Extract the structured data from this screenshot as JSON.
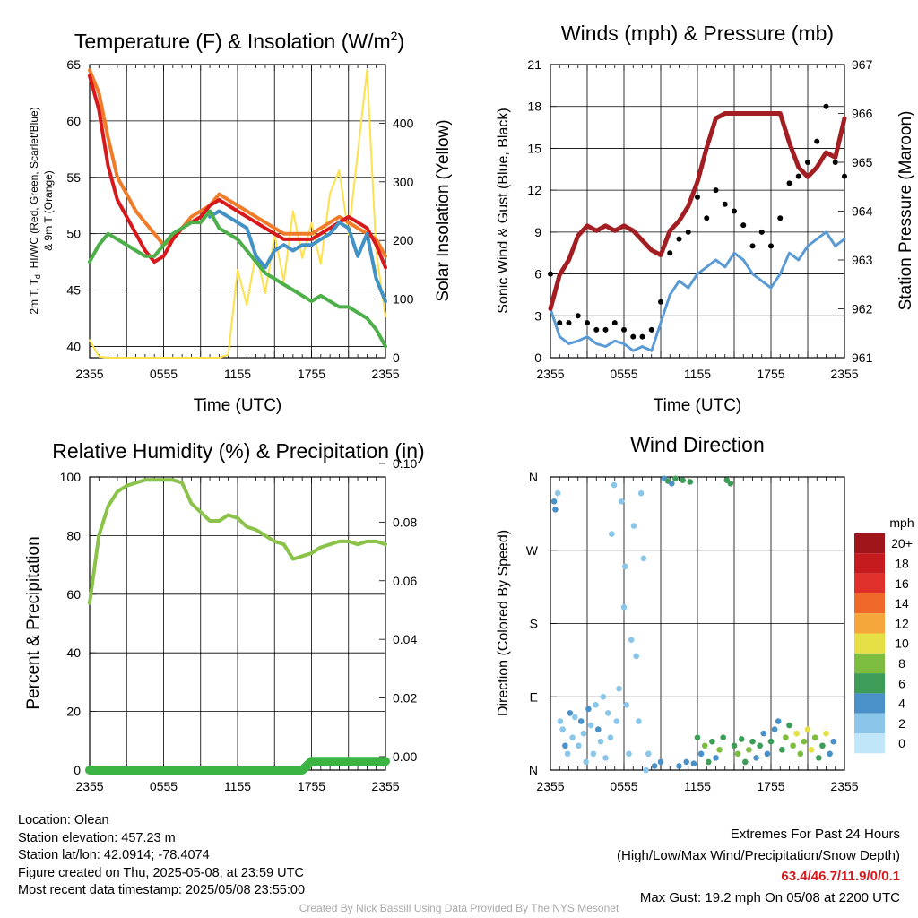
{
  "chart_data": [
    {
      "id": "temp",
      "type": "line",
      "title": "Temperature (F) & Insolation (W/m",
      "title_sup": "2",
      "title_end": ")",
      "xlabel": "Time (UTC)",
      "ylabel_left": "2m T, T",
      "ylabel_left_sub": "d",
      "ylabel_left_rest": ", HI/WC (Red, Green, Scarlet/Blue)",
      "ylabel_left_line2": "& 9m T (Orange)",
      "ylabel_right": "Solar Insolation (Yellow)",
      "x_ticks": [
        "2355",
        "0555",
        "1155",
        "1755",
        "2355"
      ],
      "ylim": [
        39,
        65
      ],
      "y_ticks": [
        40,
        45,
        50,
        55,
        60,
        65
      ],
      "y2lim": [
        0,
        500
      ],
      "y2_ticks": [
        0,
        100,
        200,
        300,
        400
      ],
      "grid": true,
      "series": [
        {
          "color": "#f07b29",
          "values": [
            64.5,
            62.5,
            58.5,
            55.0,
            53.5,
            52.0,
            51.0,
            50.0,
            49.0,
            49.5,
            50.5,
            51.5,
            52.0,
            52.5,
            53.5,
            53.0,
            52.5,
            52.0,
            51.5,
            51.0,
            50.5,
            50.0,
            50.0,
            50.0,
            50.0,
            50.5,
            51.0,
            51.5,
            51.0,
            50.5,
            50.0,
            49.5,
            48.0
          ]
        },
        {
          "color": "#d7191c",
          "values": [
            64.0,
            61.0,
            56.0,
            53.0,
            51.5,
            50.0,
            48.5,
            47.5,
            48.0,
            49.5,
            50.5,
            51.0,
            51.5,
            52.5,
            53.0,
            52.5,
            52.0,
            51.5,
            51.0,
            50.5,
            50.0,
            49.5,
            49.5,
            49.5,
            49.5,
            50.0,
            50.5,
            51.0,
            51.5,
            51.0,
            50.5,
            49.0,
            47.0
          ]
        },
        {
          "color": "#4292c6",
          "values": [
            null,
            null,
            null,
            null,
            null,
            null,
            null,
            null,
            null,
            null,
            null,
            null,
            null,
            51.5,
            52.0,
            51.5,
            51.0,
            50.5,
            48.0,
            47.0,
            48.5,
            49.0,
            48.5,
            49.0,
            49.0,
            49.5,
            50.0,
            51.0,
            50.5,
            48.0,
            50.0,
            46.0,
            44.0
          ]
        },
        {
          "color": "#4daf4a",
          "values": [
            47.5,
            49.0,
            50.0,
            49.5,
            49.0,
            48.5,
            48.0,
            48.0,
            49.0,
            50.0,
            50.5,
            51.0,
            51.0,
            52.0,
            50.5,
            50.0,
            49.5,
            48.5,
            47.5,
            46.5,
            46.0,
            45.5,
            45.0,
            44.5,
            44.0,
            44.5,
            44.0,
            43.5,
            43.5,
            43.0,
            42.5,
            41.5,
            40.0
          ]
        }
      ],
      "insolation": {
        "color": "#fde04c",
        "values": [
          30,
          2,
          0,
          0,
          0,
          0,
          0,
          0,
          0,
          0,
          0,
          0,
          0,
          0,
          0,
          5,
          150,
          90,
          180,
          110,
          210,
          130,
          250,
          170,
          230,
          160,
          280,
          320,
          210,
          350,
          490,
          180,
          70
        ]
      }
    },
    {
      "id": "wind",
      "type": "line",
      "title": "Winds (mph) & Pressure (mb)",
      "xlabel": "Time (UTC)",
      "ylabel_left": "Sonic Wind & Gust (Blue, Black)",
      "ylabel_right": "Station Pressure (Maroon)",
      "x_ticks": [
        "2355",
        "0555",
        "1155",
        "1755",
        "2355"
      ],
      "ylim": [
        0,
        21
      ],
      "y_ticks": [
        0,
        3,
        6,
        9,
        12,
        15,
        18,
        21
      ],
      "y2lim": [
        961,
        967
      ],
      "y2_ticks": [
        961,
        962,
        963,
        964,
        965,
        966,
        967
      ],
      "grid": true,
      "series": [
        {
          "name": "wind",
          "color": "#5b9bd5",
          "values": [
            3.5,
            1.5,
            1.0,
            1.2,
            1.5,
            1.0,
            0.8,
            1.2,
            1.0,
            0.5,
            0.8,
            0.5,
            2.5,
            4.5,
            5.5,
            5.0,
            6.0,
            6.5,
            7.0,
            6.5,
            7.5,
            7.0,
            6.0,
            5.5,
            5.0,
            6.0,
            7.5,
            7.0,
            8.0,
            8.5,
            9.0,
            8.0,
            8.5
          ]
        },
        {
          "name": "gust",
          "color": "#000000",
          "values": [
            6.0,
            2.5,
            2.5,
            3.0,
            2.5,
            2.0,
            2.0,
            2.5,
            2.0,
            1.5,
            1.5,
            2.0,
            4.0,
            7.5,
            8.5,
            9.0,
            11.5,
            10.0,
            12.0,
            11.0,
            10.5,
            9.5,
            8.0,
            9.0,
            8.0,
            10.0,
            12.5,
            13.0,
            14.0,
            15.5,
            18.0,
            14.0,
            13.0
          ]
        }
      ],
      "pressure": {
        "color": "#a31e22",
        "values": [
          962.0,
          962.7,
          963.0,
          963.5,
          963.7,
          963.6,
          963.7,
          963.6,
          963.7,
          963.6,
          963.4,
          963.2,
          963.1,
          963.6,
          963.8,
          964.1,
          964.6,
          965.3,
          965.9,
          966.0,
          966.0,
          966.0,
          966.0,
          966.0,
          966.0,
          966.0,
          965.4,
          964.9,
          964.7,
          964.9,
          965.2,
          965.1,
          965.9
        ]
      }
    },
    {
      "id": "rh",
      "type": "line",
      "title": "Relative Humidity (%) & Precipitation (in)",
      "ylabel_left": "Percent & Precipitation",
      "x_ticks": [
        "2355",
        "0555",
        "1155",
        "1755",
        "2355"
      ],
      "ylim": [
        0,
        100
      ],
      "y_ticks": [
        0,
        20,
        40,
        60,
        80,
        100
      ],
      "y2lim": [
        0,
        0.1
      ],
      "y2_ticks": [
        "0.00",
        "0.02",
        "0.04",
        "0.06",
        "0.08",
        "0.10"
      ],
      "grid": true,
      "series": [
        {
          "name": "rh",
          "color": "#8bc34a",
          "values": [
            57,
            80,
            90,
            95,
            97,
            98,
            99,
            99,
            99,
            99,
            98,
            91,
            88,
            85,
            85,
            87,
            86,
            83,
            82,
            80,
            78,
            77,
            72,
            73,
            74,
            76,
            77,
            78,
            78,
            77,
            78,
            78,
            77
          ]
        },
        {
          "name": "precip",
          "color": "#3cb443",
          "values": [
            0,
            0,
            0,
            0,
            0,
            0,
            0,
            0,
            0,
            0,
            0,
            0,
            0,
            0,
            0,
            0,
            0,
            0,
            0,
            0,
            0,
            0,
            0,
            0,
            0.003,
            0.003,
            0.003,
            0.003,
            0.003,
            0.003,
            0.003,
            0.003,
            0.003
          ]
        }
      ]
    },
    {
      "id": "dir",
      "type": "scatter",
      "title": "Wind Direction",
      "ylabel_left": "Direction (Colored By Speed)",
      "x_ticks": [
        "2355",
        "0555",
        "1155",
        "1755",
        "2355"
      ],
      "y_ticks": [
        "N",
        "E",
        "S",
        "W",
        "N"
      ],
      "colorbar_title": "mph",
      "colorbar_labels": [
        "0",
        "2",
        "4",
        "6",
        "8",
        "10",
        "12",
        "14",
        "16",
        "18",
        "20+"
      ],
      "colorbar_colors": [
        "#bfe6f9",
        "#8ac5ea",
        "#4a90c9",
        "#3d9c58",
        "#7cbd3f",
        "#e6df45",
        "#f6a73b",
        "#ef6a2a",
        "#df3129",
        "#c51b1f",
        "#9f1519"
      ],
      "points": [
        [
          0.3,
          330,
          4
        ],
        [
          0.4,
          320,
          4
        ],
        [
          0.6,
          340,
          2
        ],
        [
          0.8,
          60,
          2
        ],
        [
          1.0,
          50,
          2
        ],
        [
          1.2,
          30,
          4
        ],
        [
          1.4,
          20,
          2
        ],
        [
          1.6,
          70,
          4
        ],
        [
          1.8,
          40,
          2
        ],
        [
          2.0,
          65,
          2
        ],
        [
          2.3,
          30,
          1
        ],
        [
          2.5,
          60,
          4
        ],
        [
          2.7,
          45,
          2
        ],
        [
          2.9,
          10,
          2
        ],
        [
          3.1,
          75,
          4
        ],
        [
          3.3,
          55,
          1
        ],
        [
          3.5,
          20,
          2
        ],
        [
          3.7,
          80,
          2
        ],
        [
          3.9,
          50,
          4
        ],
        [
          4.1,
          35,
          2
        ],
        [
          4.3,
          90,
          1
        ],
        [
          4.5,
          15,
          2
        ],
        [
          4.7,
          70,
          1
        ],
        [
          4.9,
          40,
          2
        ],
        [
          5.0,
          290,
          1
        ],
        [
          5.2,
          350,
          1
        ],
        [
          5.4,
          60,
          2
        ],
        [
          5.6,
          100,
          1
        ],
        [
          5.8,
          330,
          1
        ],
        [
          6.0,
          200,
          2
        ],
        [
          6.1,
          250,
          1
        ],
        [
          6.2,
          80,
          2
        ],
        [
          6.4,
          20,
          1
        ],
        [
          6.6,
          160,
          1
        ],
        [
          6.8,
          300,
          2
        ],
        [
          7.0,
          140,
          1
        ],
        [
          7.2,
          60,
          1
        ],
        [
          7.4,
          340,
          1
        ],
        [
          7.6,
          260,
          1
        ],
        [
          7.8,
          0,
          1
        ],
        [
          8.0,
          20,
          1
        ],
        [
          8.5,
          5,
          4
        ],
        [
          9.0,
          10,
          4
        ],
        [
          9.3,
          358,
          4
        ],
        [
          9.6,
          355,
          6
        ],
        [
          9.9,
          352,
          4
        ],
        [
          10.2,
          358,
          6
        ],
        [
          10.5,
          5,
          4
        ],
        [
          10.8,
          356,
          5
        ],
        [
          11.1,
          10,
          4
        ],
        [
          11.4,
          354,
          5
        ],
        [
          11.7,
          8,
          4
        ],
        [
          12.0,
          40,
          6
        ],
        [
          12.3,
          20,
          4
        ],
        [
          12.6,
          30,
          7
        ],
        [
          12.9,
          10,
          5
        ],
        [
          13.2,
          35,
          6
        ],
        [
          13.5,
          15,
          4
        ],
        [
          13.8,
          25,
          7
        ],
        [
          14.1,
          40,
          6
        ],
        [
          14.4,
          356,
          6
        ],
        [
          14.7,
          352,
          5
        ],
        [
          15.0,
          30,
          6
        ],
        [
          15.3,
          20,
          7
        ],
        [
          15.6,
          38,
          6
        ],
        [
          15.9,
          10,
          5
        ],
        [
          16.2,
          25,
          7
        ],
        [
          16.5,
          35,
          6
        ],
        [
          16.8,
          15,
          4
        ],
        [
          17.1,
          30,
          6
        ],
        [
          17.4,
          45,
          4
        ],
        [
          17.7,
          20,
          3
        ],
        [
          18.0,
          35,
          5
        ],
        [
          18.3,
          50,
          4
        ],
        [
          18.6,
          60,
          4
        ],
        [
          18.9,
          25,
          6
        ],
        [
          19.2,
          40,
          7
        ],
        [
          19.5,
          55,
          5
        ],
        [
          19.8,
          30,
          8
        ],
        [
          20.1,
          45,
          9
        ],
        [
          20.4,
          20,
          7
        ],
        [
          20.7,
          35,
          8
        ],
        [
          21.0,
          50,
          10
        ],
        [
          21.3,
          25,
          9
        ],
        [
          21.6,
          40,
          7
        ],
        [
          21.9,
          15,
          5
        ],
        [
          22.2,
          30,
          6
        ],
        [
          22.5,
          45,
          9
        ],
        [
          22.8,
          20,
          4
        ],
        [
          23.1,
          35,
          3
        ]
      ]
    }
  ],
  "info": {
    "location": "Location: Olean",
    "elevation": "Station elevation: 457.23 m",
    "latlon": "Station lat/lon: 42.0914; -78.4074",
    "created": "Figure created on Thu, 2025-05-08, at 23:59 UTC",
    "recent": "Most recent data timestamp: 2025/05/08 23:55:00"
  },
  "extremes": {
    "title": "Extremes For Past 24 Hours",
    "subtitle": "(High/Low/Max Wind/Precipitation/Snow Depth)",
    "values": "63.4/46.7/11.9/0/0.1",
    "gust": "Max Gust: 19.2 mph On 05/08 at 2200 UTC"
  },
  "footer": "Created By Nick Bassill Using Data Provided By The NYS Mesonet"
}
